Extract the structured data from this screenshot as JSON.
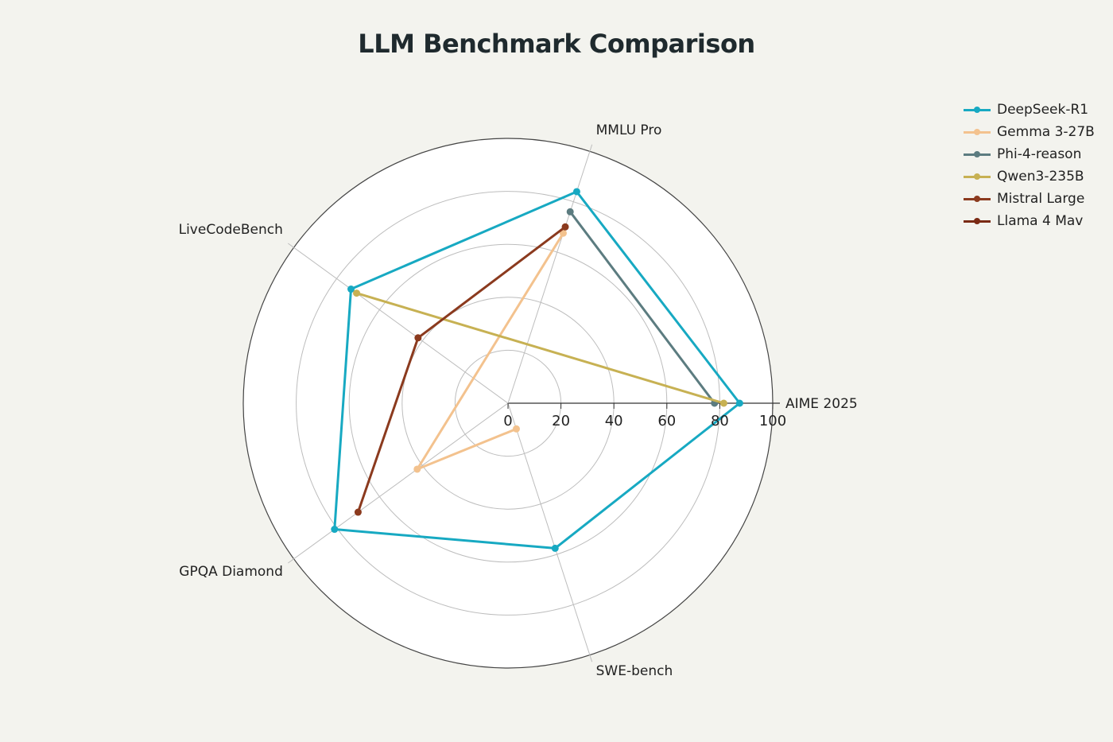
{
  "chart_data": {
    "type": "radar",
    "title": "LLM Benchmark Comparison",
    "axes": [
      "AIME 2025",
      "MMLU Pro",
      "LiveCodeBench",
      "GPQA Diamond",
      "SWE-bench"
    ],
    "rlim": [
      0,
      100
    ],
    "ticks": [
      0,
      20,
      40,
      60,
      80,
      100
    ],
    "grid": true,
    "legend_position": "top-right",
    "series": [
      {
        "name": "DeepSeek-R1",
        "color": "#17a9c2",
        "values": [
          87.5,
          84,
          73.3,
          81,
          57.6
        ]
      },
      {
        "name": "Gemma 3-27B",
        "color": "#f3c28e",
        "values": [
          null,
          67.5,
          null,
          42.4,
          10.2
        ]
      },
      {
        "name": "Phi-4-reason",
        "color": "#5c7c80",
        "values": [
          78,
          76,
          null,
          null,
          null
        ]
      },
      {
        "name": "Qwen3-235B",
        "color": "#c7b153",
        "values": [
          81.5,
          null,
          70.7,
          null,
          null
        ]
      },
      {
        "name": "Mistral Large",
        "color": "#8b3a1e",
        "values": [
          null,
          70,
          42,
          70,
          null
        ]
      },
      {
        "name": "Llama 4 Mav",
        "color": "#7a2a14",
        "values": [
          null,
          null,
          null,
          null,
          null
        ]
      }
    ]
  }
}
